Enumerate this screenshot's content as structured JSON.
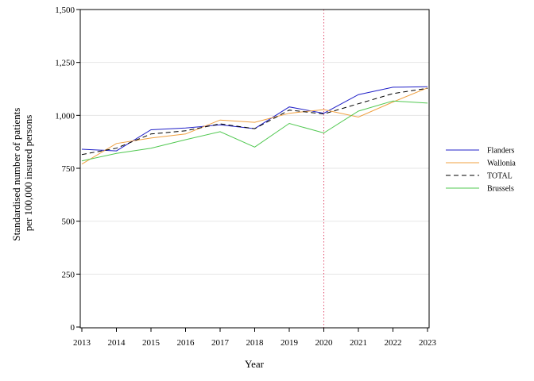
{
  "chart_data": {
    "type": "line",
    "title": "",
    "xlabel": "Year",
    "ylabel_lines": [
      "Standardised number of patients",
      "per 100,000 insured persons"
    ],
    "x": [
      "2013",
      "2014",
      "2015",
      "2016",
      "2017",
      "2018",
      "2019",
      "2020",
      "2021",
      "2022",
      "2023"
    ],
    "ylim": [
      0,
      1500
    ],
    "yticks": [
      0,
      250,
      500,
      750,
      1000,
      1250,
      1500
    ],
    "ytick_labels": [
      "0",
      "250",
      "500",
      "750",
      "1,000",
      "1,250",
      "1,500"
    ],
    "grid": "horizontal",
    "reference_line": {
      "x": "2020",
      "color": "#e05070",
      "style": "dotted"
    },
    "legend_position": "right",
    "series": [
      {
        "name": "Flanders",
        "color": "#2020c8",
        "dash": "solid",
        "values": [
          840,
          832,
          932,
          940,
          955,
          937,
          1040,
          1010,
          1098,
          1133,
          1135
        ]
      },
      {
        "name": "Wallonia",
        "color": "#f0a040",
        "dash": "solid",
        "values": [
          770,
          867,
          893,
          912,
          978,
          967,
          1010,
          1027,
          992,
          1063,
          1130
        ]
      },
      {
        "name": "TOTAL",
        "color": "#000000",
        "dash": "dashed",
        "values": [
          815,
          845,
          912,
          927,
          960,
          937,
          1025,
          1007,
          1055,
          1103,
          1128
        ]
      },
      {
        "name": "Brussels",
        "color": "#50c850",
        "dash": "solid",
        "values": [
          785,
          820,
          845,
          885,
          923,
          850,
          962,
          917,
          1020,
          1068,
          1058
        ]
      }
    ]
  }
}
